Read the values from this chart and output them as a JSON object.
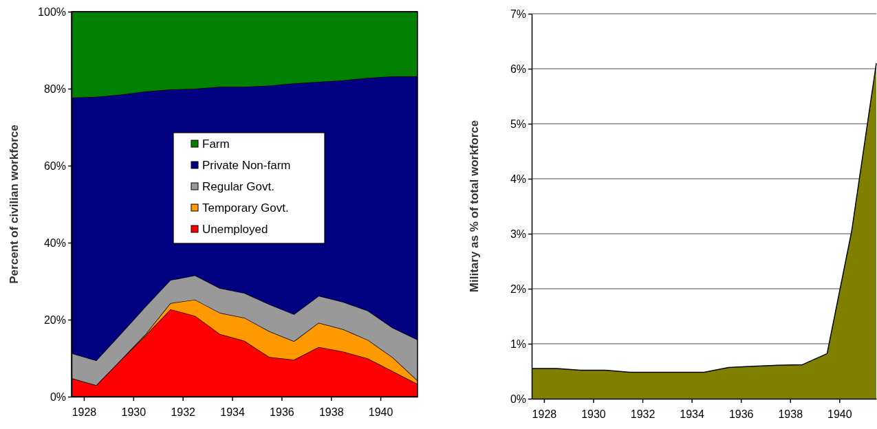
{
  "chart_data": [
    {
      "type": "area",
      "stacked": true,
      "ylabel": "Percent of civilian workforce",
      "x": [
        1927.5,
        1928.5,
        1929.5,
        1930.5,
        1931.5,
        1932.5,
        1933.5,
        1934.5,
        1935.5,
        1936.5,
        1937.5,
        1938.5,
        1939.5,
        1940.5,
        1941.5
      ],
      "xlim": [
        1927.5,
        1941.5
      ],
      "xticks": [
        1928,
        1930,
        1932,
        1934,
        1936,
        1938,
        1940
      ],
      "ylim": [
        0,
        100
      ],
      "yticks": [
        {
          "value": 0,
          "label": "0%"
        },
        {
          "value": 20,
          "label": "20%"
        },
        {
          "value": 40,
          "label": "40%"
        },
        {
          "value": 60,
          "label": "60%"
        },
        {
          "value": 80,
          "label": "80%"
        },
        {
          "value": 100,
          "label": "100%"
        }
      ],
      "legend": "center",
      "grid": false,
      "series": [
        {
          "name": "Unemployed",
          "color": "#ff0000",
          "values": [
            4.8,
            3.0,
            9.6,
            16.0,
            22.7,
            21.0,
            16.3,
            14.5,
            10.3,
            9.6,
            12.9,
            11.7,
            9.9,
            6.6,
            3.3
          ]
        },
        {
          "name": "Temporary Govt.",
          "color": "#ff9900",
          "values": [
            0,
            0,
            0,
            0.3,
            1.6,
            4.2,
            5.5,
            6.0,
            6.7,
            4.8,
            6.3,
            5.8,
            4.8,
            3.6,
            0.9
          ]
        },
        {
          "name": "Regular Govt.",
          "color": "#999999",
          "values": [
            6.5,
            6.4,
            6.8,
            7.2,
            6.0,
            6.3,
            6.4,
            6.4,
            7.0,
            7.0,
            7.0,
            7.1,
            7.6,
            7.7,
            10.6
          ]
        },
        {
          "name": "Private Non-farm",
          "color": "#000080",
          "values": [
            66.4,
            68.5,
            62.1,
            55.8,
            49.5,
            48.5,
            52.3,
            53.6,
            56.8,
            60.0,
            55.6,
            57.6,
            60.5,
            65.3,
            68.4
          ]
        },
        {
          "name": "Farm",
          "color": "#008000",
          "values": [
            22.3,
            22.1,
            21.5,
            20.7,
            20.2,
            20.0,
            19.5,
            19.5,
            19.2,
            18.6,
            18.2,
            17.8,
            17.2,
            16.8,
            16.8
          ]
        }
      ]
    },
    {
      "type": "area",
      "ylabel": "Military as % of total workforce",
      "x": [
        1927.5,
        1928.5,
        1929.5,
        1930.5,
        1931.5,
        1932.5,
        1933.5,
        1934.5,
        1935.5,
        1936.5,
        1937.5,
        1938.5,
        1939.5,
        1940.5,
        1941.5
      ],
      "xlim": [
        1927.5,
        1941.5
      ],
      "xticks": [
        1928,
        1930,
        1932,
        1934,
        1936,
        1938,
        1940
      ],
      "ylim": [
        0,
        7
      ],
      "yticks": [
        {
          "value": 0,
          "label": "0%"
        },
        {
          "value": 1,
          "label": "1%"
        },
        {
          "value": 2,
          "label": "2%"
        },
        {
          "value": 3,
          "label": "3%"
        },
        {
          "value": 4,
          "label": "4%"
        },
        {
          "value": 5,
          "label": "5%"
        },
        {
          "value": 6,
          "label": "6%"
        },
        {
          "value": 7,
          "label": "7%"
        }
      ],
      "grid": "y",
      "series": [
        {
          "color": "#808000",
          "values": [
            0.55,
            0.55,
            0.52,
            0.52,
            0.48,
            0.48,
            0.48,
            0.48,
            0.57,
            0.59,
            0.61,
            0.62,
            0.82,
            3.05,
            6.1
          ]
        }
      ]
    }
  ]
}
